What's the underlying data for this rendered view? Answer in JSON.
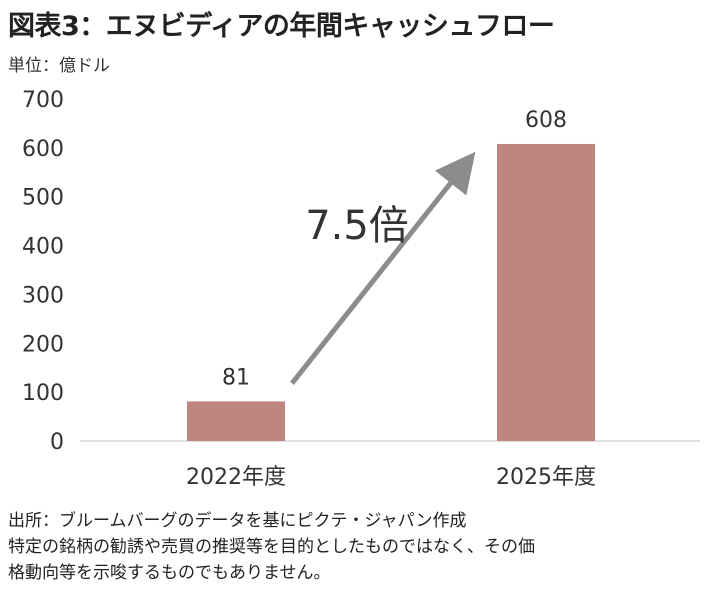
{
  "title": "図表3：エヌビディアの年間キャッシュフロー",
  "unit_label": "単位：億ドル",
  "chart_data": {
    "type": "bar",
    "categories": [
      "2022年度",
      "2025年度"
    ],
    "values": [
      81,
      608
    ],
    "data_labels": [
      "81",
      "608"
    ],
    "ylim": [
      0,
      700
    ],
    "yticks": [
      0,
      100,
      200,
      300,
      400,
      500,
      600,
      700
    ],
    "grid": false,
    "bar_color": "#bf8580",
    "annotation": {
      "text": "7.5倍",
      "arrow": "from the 2022年度 bar up to the 2025年度 bar",
      "arrow_color": "#8c8c8c"
    }
  },
  "footer": {
    "line1": "出所：ブルームバーグのデータを基にピクテ・ジャパン作成",
    "line2": "特定の銘柄の勧誘や売買の推奨等を目的としたものではなく、その価",
    "line3": "格動向等を示唆するものでもありません。"
  }
}
